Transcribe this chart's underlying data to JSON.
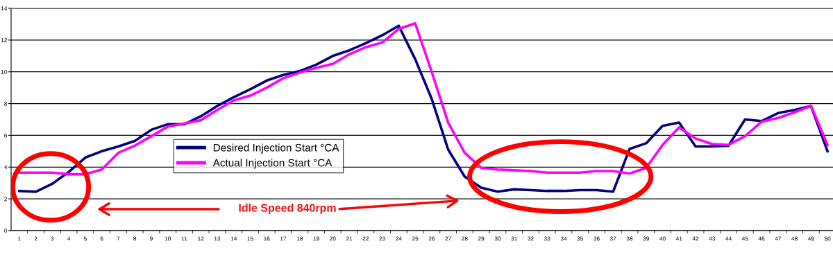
{
  "chart_data": {
    "type": "line",
    "categories": [
      "1",
      "2",
      "3",
      "4",
      "5",
      "6",
      "7",
      "8",
      "9",
      "10",
      "11",
      "12",
      "13",
      "14",
      "15",
      "16",
      "17",
      "18",
      "19",
      "20",
      "21",
      "22",
      "23",
      "24",
      "25",
      "26",
      "27",
      "28",
      "29",
      "30",
      "31",
      "32",
      "33",
      "34",
      "35",
      "36",
      "37",
      "38",
      "39",
      "40",
      "41",
      "42",
      "43",
      "44",
      "45",
      "46",
      "47",
      "48",
      "49",
      "50"
    ],
    "series": [
      {
        "name": "Desired Injection Start °CA",
        "color": "#000080",
        "values": [
          2.5,
          2.45,
          2.95,
          3.7,
          4.6,
          5.0,
          5.3,
          5.65,
          6.35,
          6.7,
          6.7,
          7.2,
          7.85,
          8.4,
          8.9,
          9.45,
          9.8,
          10.05,
          10.45,
          11.0,
          11.35,
          11.8,
          12.3,
          12.9,
          10.8,
          8.3,
          5.1,
          3.4,
          2.7,
          2.45,
          2.6,
          2.55,
          2.5,
          2.5,
          2.55,
          2.55,
          2.45,
          5.15,
          5.5,
          6.6,
          6.8,
          5.3,
          5.3,
          5.35,
          7.0,
          6.9,
          7.4,
          7.6,
          7.85,
          5.0
        ]
      },
      {
        "name": "Actual Injection Start °CA",
        "color": "#ff00ff",
        "values": [
          3.65,
          3.65,
          3.65,
          3.55,
          3.55,
          3.85,
          4.9,
          5.35,
          5.95,
          6.55,
          6.75,
          6.95,
          7.6,
          8.2,
          8.5,
          9.0,
          9.6,
          9.95,
          10.25,
          10.5,
          11.1,
          11.55,
          11.85,
          12.7,
          13.05,
          10.0,
          6.8,
          4.9,
          3.95,
          3.85,
          3.8,
          3.75,
          3.65,
          3.65,
          3.65,
          3.75,
          3.75,
          3.6,
          3.95,
          5.4,
          6.5,
          5.8,
          5.45,
          5.4,
          5.95,
          6.85,
          7.1,
          7.45,
          7.85,
          5.4
        ]
      }
    ],
    "ylim": [
      0,
      14
    ],
    "yticks": [
      0,
      2,
      4,
      6,
      8,
      10,
      12,
      14
    ],
    "grid": "y",
    "legend": "center",
    "marker": "none",
    "line_style": "solid",
    "annotations": [
      "Idle Speed 840rpm"
    ]
  }
}
